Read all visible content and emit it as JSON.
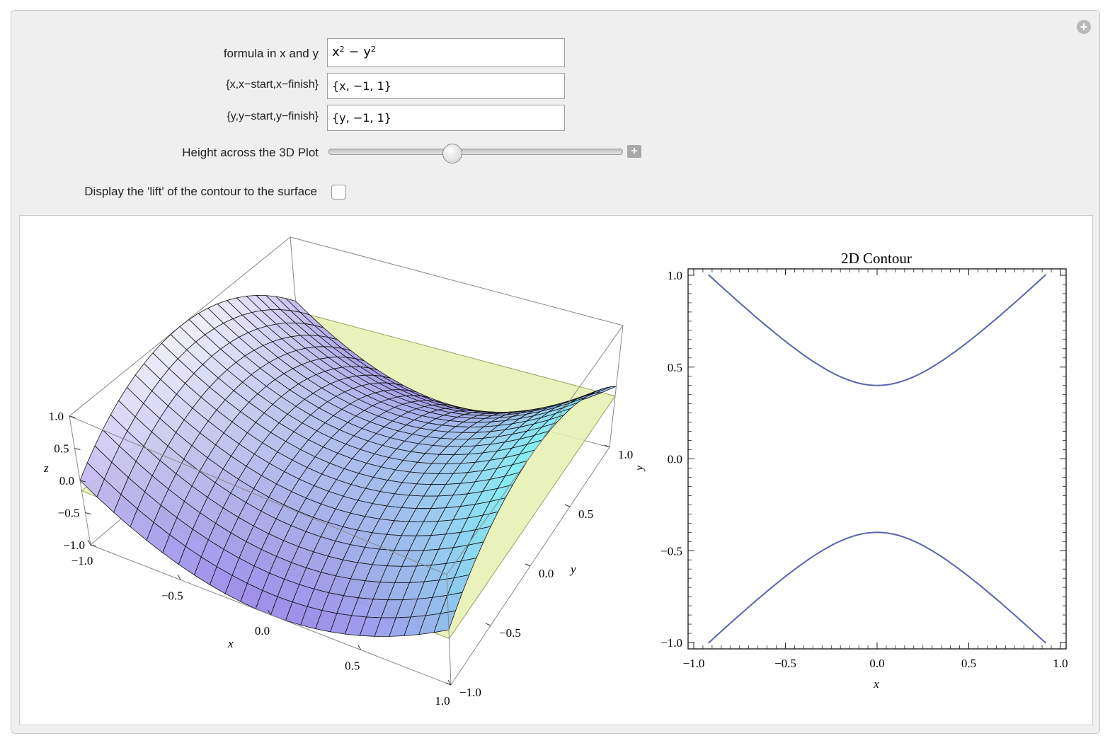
{
  "controls": {
    "formula": {
      "label": "formula in x and y",
      "value_base_x": "x",
      "value_exp_x": "2",
      "value_minus": " − ",
      "value_base_y": "y",
      "value_exp_y": "2"
    },
    "x_range": {
      "label": "{x,x−start,x−finish}",
      "value": "{x, −1, 1}"
    },
    "y_range": {
      "label": "{y,y−start,y−finish}",
      "value": "{y, −1, 1}"
    },
    "height": {
      "label": "Height across the 3D Plot",
      "value_fraction": 0.42
    },
    "lift": {
      "label": "Display the 'lift' of the contour to the surface",
      "checked": false
    }
  },
  "plot3d": {
    "z_axis_label": "z",
    "x_axis_label": "x",
    "y_axis_label": "y",
    "z_ticks": [
      "1.0",
      "0.5",
      "0.0",
      "−0.5",
      "−1.0"
    ],
    "x_ticks": [
      "−1.0",
      "−0.5",
      "0.0",
      "0.5",
      "1.0"
    ],
    "y_ticks": [
      "1.0",
      "0.5",
      "0.0",
      "−0.5",
      "−1.0"
    ],
    "colors": {
      "plane": "#e6f0b0",
      "mesh": "#111111",
      "box": "#888888"
    }
  },
  "chart_data": {
    "type": "line",
    "title": "2D Contour",
    "xlabel": "x",
    "ylabel": "y",
    "xlim": [
      -1.0,
      1.0
    ],
    "ylim": [
      -1.0,
      1.0
    ],
    "x_ticks": [
      "−1.0",
      "−0.5",
      "0.0",
      "0.5",
      "1.0"
    ],
    "y_ticks": [
      "1.0",
      "0.5",
      "0.0",
      "−0.5",
      "−1.0"
    ],
    "level": -0.16,
    "series": [
      {
        "x": [
          -0.92,
          -0.75,
          -0.5,
          -0.25,
          0.0,
          0.25,
          0.5,
          0.75,
          0.92
        ],
        "y": [
          1.0,
          0.84,
          0.64,
          0.47,
          0.4,
          0.47,
          0.64,
          0.84,
          1.0
        ]
      },
      {
        "x": [
          -0.92,
          -0.75,
          -0.5,
          -0.25,
          0.0,
          0.25,
          0.5,
          0.75,
          0.92
        ],
        "y": [
          -1.0,
          -0.84,
          -0.64,
          -0.47,
          -0.4,
          -0.47,
          -0.64,
          -0.84,
          -1.0
        ]
      }
    ],
    "color": "#5a64b0",
    "grid": false
  }
}
